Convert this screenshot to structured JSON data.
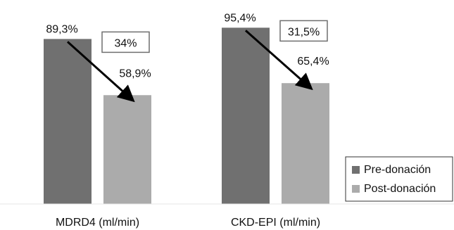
{
  "chart_data": {
    "type": "bar",
    "categories": [
      "MDRD4 (ml/min)",
      "CKD-EPI (ml/min)"
    ],
    "series": [
      {
        "name": "Pre-donación",
        "values": [
          89.3,
          95.4
        ],
        "labels": [
          "89,3%",
          "95,4%"
        ],
        "color": "#707070"
      },
      {
        "name": "Post-donación",
        "values": [
          58.9,
          65.4
        ],
        "labels": [
          "58,9%",
          "65,4%"
        ],
        "color": "#ababab"
      }
    ],
    "annotations": [
      {
        "category": "MDRD4 (ml/min)",
        "text": "34%"
      },
      {
        "category": "CKD-EPI (ml/min)",
        "text": "31,5%"
      }
    ],
    "ylim": [
      0,
      100
    ],
    "grid": false,
    "legend": "right"
  }
}
